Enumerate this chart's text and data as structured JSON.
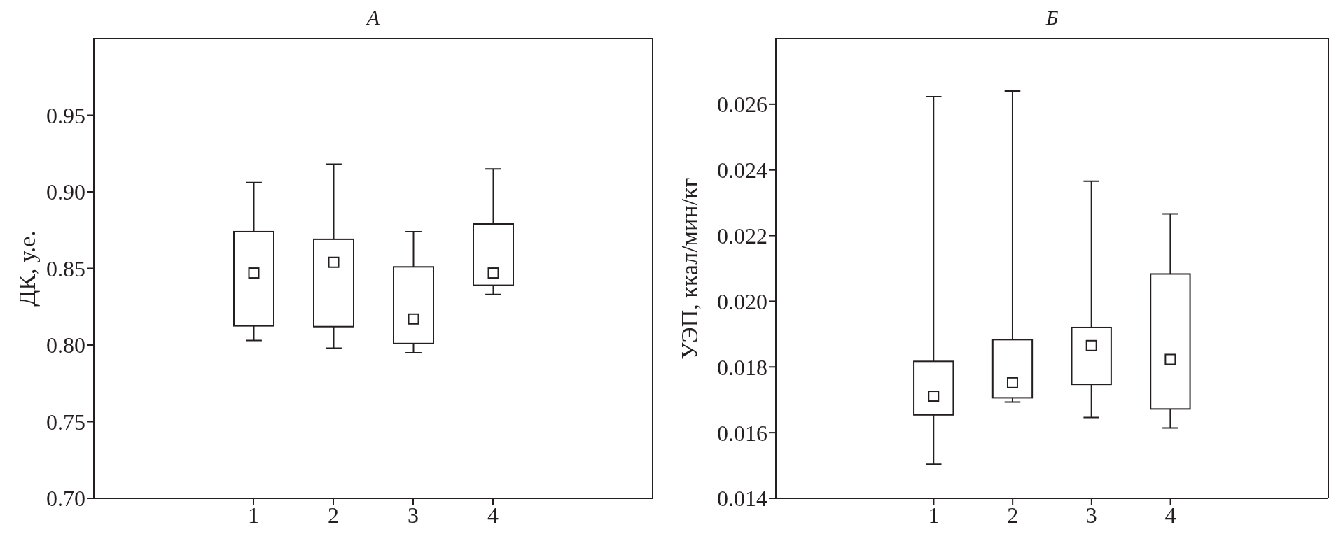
{
  "chart_data": [
    {
      "type": "box",
      "title": "А",
      "ylabel": "ДК, у.е.",
      "categories": [
        "1",
        "2",
        "3",
        "4"
      ],
      "marker": "square",
      "ylim": [
        0.7,
        1.0
      ],
      "yticks": [
        {
          "value": 0.7,
          "label": "0.70"
        },
        0.75,
        {
          "value": 0.8,
          "label": "0.80"
        },
        0.85,
        {
          "value": 0.9,
          "label": "0.90"
        },
        0.95
      ],
      "boxes": [
        {
          "low": 0.803,
          "q1": 0.8125,
          "median": 0.847,
          "q3": 0.874,
          "high": 0.906
        },
        {
          "low": 0.798,
          "q1": 0.812,
          "median": 0.854,
          "q3": 0.869,
          "high": 0.918
        },
        {
          "low": 0.795,
          "q1": 0.801,
          "median": 0.817,
          "q3": 0.851,
          "high": 0.874
        },
        {
          "low": 0.833,
          "q1": 0.839,
          "median": 0.847,
          "q3": 0.879,
          "high": 0.915
        }
      ]
    },
    {
      "type": "box",
      "title": "Б",
      "ylabel": "УЭП, ккал/мин/кг",
      "categories": [
        "1",
        "2",
        "3",
        "4"
      ],
      "marker": "square",
      "ylim": [
        0.014,
        0.028
      ],
      "yticks": [
        0.014,
        0.016,
        0.018,
        {
          "value": 0.02,
          "label": "0.020"
        },
        0.022,
        0.024,
        0.026
      ],
      "boxes": [
        {
          "low": 0.01504,
          "q1": 0.01654,
          "median": 0.01711,
          "q3": 0.01817,
          "high": 0.02623
        },
        {
          "low": 0.01693,
          "q1": 0.01706,
          "median": 0.01752,
          "q3": 0.01883,
          "high": 0.0264
        },
        {
          "low": 0.01646,
          "q1": 0.01747,
          "median": 0.01865,
          "q3": 0.0192,
          "high": 0.02366
        },
        {
          "low": 0.01614,
          "q1": 0.01672,
          "median": 0.01823,
          "q3": 0.02083,
          "high": 0.02266
        }
      ]
    }
  ]
}
